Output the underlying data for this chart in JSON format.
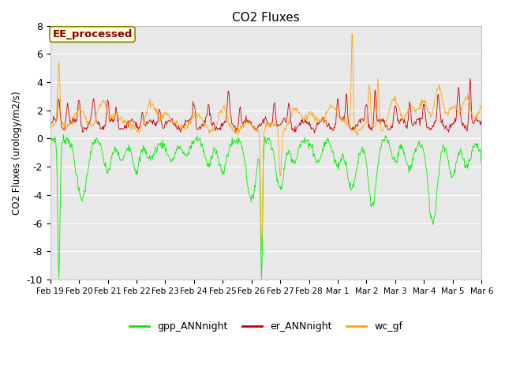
{
  "title": "CO2 Fluxes",
  "ylabel": "CO2 Fluxes (urology/m2/s)",
  "ylim": [
    -10,
    8
  ],
  "yticks": [
    -10,
    -8,
    -6,
    -4,
    -2,
    0,
    2,
    4,
    6,
    8
  ],
  "annotation": "EE_processed",
  "bg_color": "#e8e8e8",
  "fig_bg": "#ffffff",
  "line_colors": {
    "gpp_ANNnight": "#00ee00",
    "er_ANNnight": "#cc0000",
    "wc_gf": "#ffa500"
  },
  "date_labels": [
    "Feb 19",
    "Feb 20",
    "Feb 21",
    "Feb 22",
    "Feb 23",
    "Feb 24",
    "Feb 25",
    "Feb 26",
    "Feb 27",
    "Feb 28",
    "Mar 1",
    "Mar 2",
    "Mar 3",
    "Mar 4",
    "Mar 5",
    "Mar 6"
  ],
  "n_points": 800,
  "linewidth": 0.6
}
